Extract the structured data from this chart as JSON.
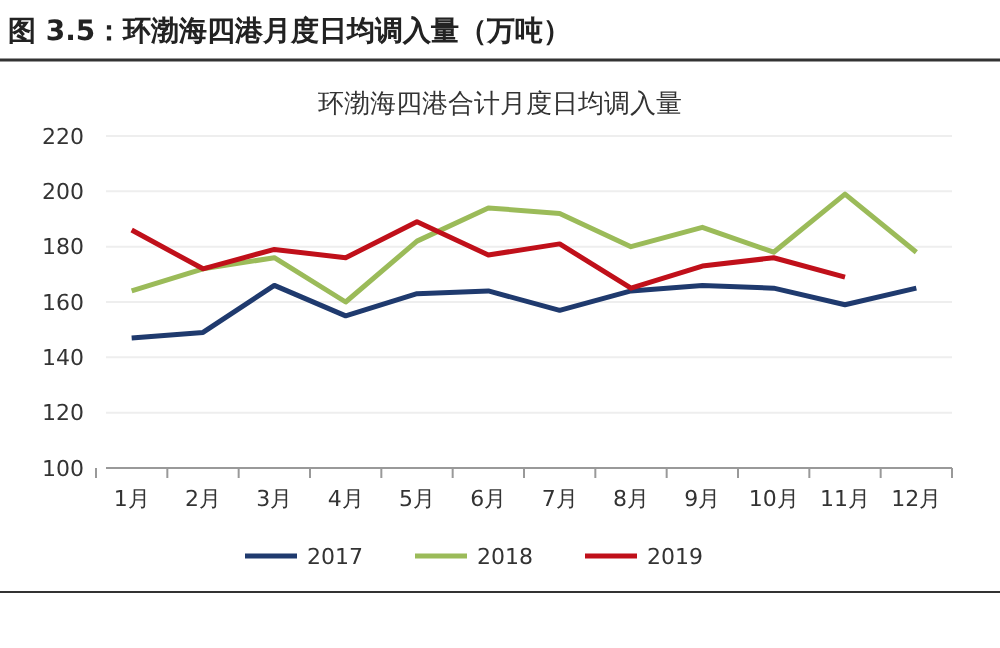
{
  "chart_data": {
    "type": "line",
    "title": "图 3.5：环渤海四港月度日均调入量（万吨）",
    "subtitle": "环渤海四港合计月度日均调入量",
    "categories": [
      "1月",
      "2月",
      "3月",
      "4月",
      "5月",
      "6月",
      "7月",
      "8月",
      "9月",
      "10月",
      "11月",
      "12月"
    ],
    "series": [
      {
        "name": "2017",
        "color": "#1f3a6e",
        "values": [
          147,
          149,
          166,
          155,
          163,
          164,
          157,
          164,
          166,
          165,
          159,
          165
        ]
      },
      {
        "name": "2018",
        "color": "#9bbb59",
        "values": [
          164,
          172,
          176,
          160,
          182,
          194,
          192,
          180,
          187,
          178,
          199,
          178
        ]
      },
      {
        "name": "2019",
        "color": "#c0101a",
        "values": [
          186,
          172,
          179,
          176,
          189,
          177,
          181,
          165,
          173,
          176,
          169,
          null
        ]
      }
    ],
    "ylim": [
      100,
      220
    ],
    "yticks": [
      100,
      120,
      140,
      160,
      180,
      200,
      220
    ],
    "grid": "y",
    "legend": "bottom",
    "marker": "none",
    "line_style": "solid"
  }
}
